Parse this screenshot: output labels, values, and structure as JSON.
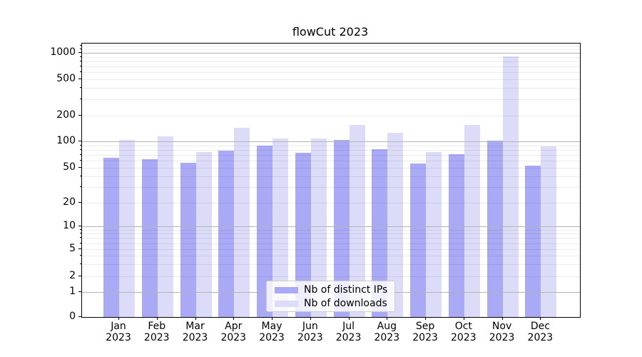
{
  "chart_data": {
    "type": "bar",
    "title": "flowCut 2023",
    "x_categories": [
      "Jan",
      "Feb",
      "Mar",
      "Apr",
      "May",
      "Jun",
      "Jul",
      "Aug",
      "Sep",
      "Oct",
      "Nov",
      "Dec"
    ],
    "x_year_suffix": "2023",
    "series": [
      {
        "name": "Nb of distinct IPs",
        "color": "#a9a9f5",
        "values": [
          65,
          63,
          57,
          78,
          89,
          74,
          104,
          81,
          56,
          71,
          102,
          53
        ]
      },
      {
        "name": "Nb of downloads",
        "color": "#dcdcf9",
        "values": [
          103,
          115,
          75,
          145,
          109,
          109,
          157,
          126,
          75,
          157,
          910,
          87
        ]
      }
    ],
    "y_ticks": [
      0,
      1,
      2,
      5,
      10,
      20,
      50,
      100,
      200,
      500,
      1000
    ],
    "y_scale": "symlog",
    "ylim": [
      0,
      1300
    ],
    "grid": true,
    "legend_position": "lower center",
    "colors": {
      "grid_major": "#b3b3b3",
      "grid_minor": "#ededed",
      "axis": "#000000",
      "background": "#ffffff"
    }
  }
}
